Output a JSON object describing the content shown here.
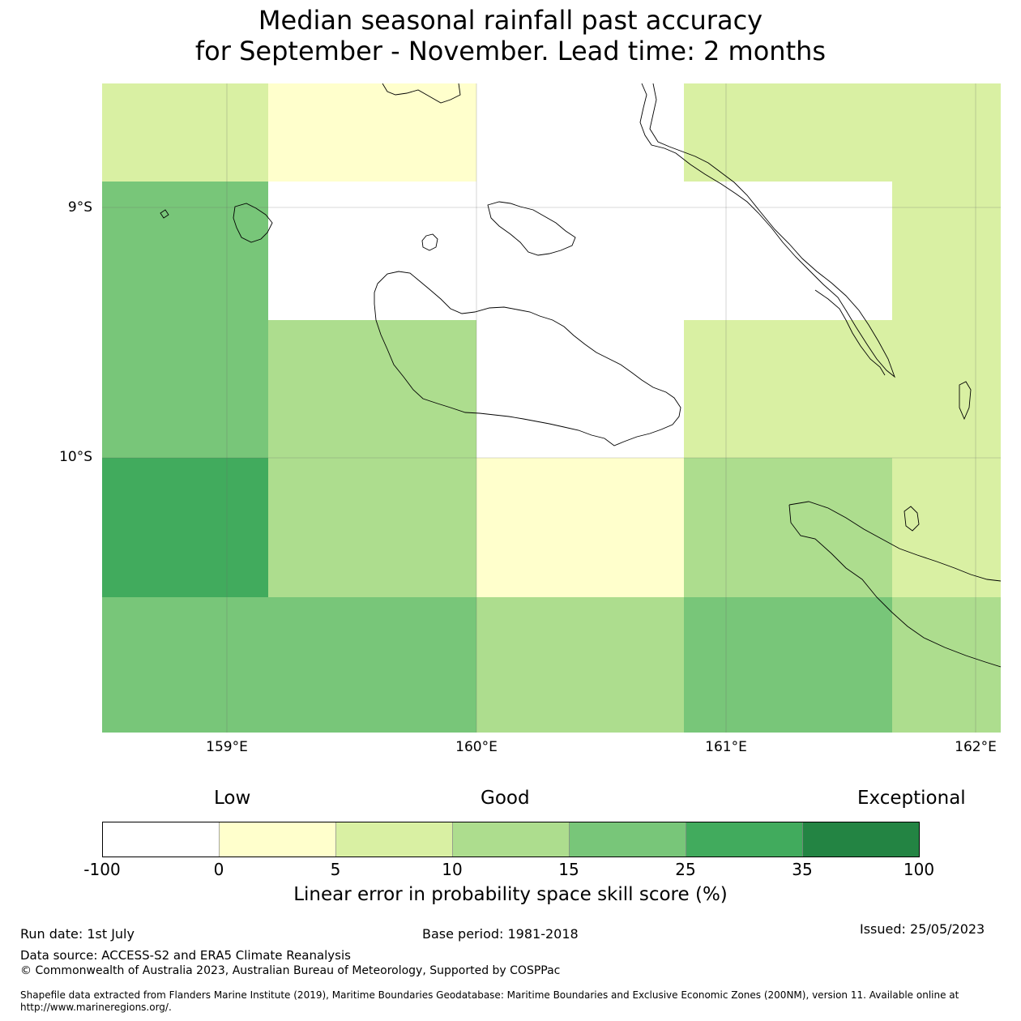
{
  "title": {
    "line1": "Median seasonal rainfall past accuracy",
    "line2": "for September - November. Lead time: 2 months"
  },
  "map": {
    "lat_labels": [
      "9°S",
      "10°S"
    ],
    "lon_labels": [
      "159°E",
      "160°E",
      "161°E",
      "162°E"
    ],
    "legend_categories": [
      "Low",
      "Good",
      "Exceptional"
    ],
    "colorbar_ticks": [
      "-100",
      "0",
      "5",
      "10",
      "15",
      "25",
      "35",
      "100"
    ],
    "colorbar_colors": [
      "#ffffff",
      "#ffffcc",
      "#d9f0a3",
      "#addd8e",
      "#78c679",
      "#41ab5d",
      "#238443"
    ],
    "colorbar_label": "Linear error in probability space skill score (%)",
    "grid_cells": [
      {
        "lon_range": [
          "158.5E",
          "159.17E"
        ],
        "lat_range": [
          "8.6S",
          "8.9S"
        ],
        "skill_class": "5-10"
      },
      {
        "lon_range": [
          "159.17E",
          "160E"
        ],
        "lat_range": [
          "8.6S",
          "8.9S"
        ],
        "skill_class": "0-5"
      },
      {
        "lon_range": [
          "160E",
          "160.83E"
        ],
        "lat_range": [
          "8.6S",
          "9.5S"
        ],
        "skill_class": "-100-0"
      },
      {
        "lon_range": [
          "160.83E",
          "162.1E"
        ],
        "lat_range": [
          "8.6S",
          "8.9S"
        ],
        "skill_class": "5-10"
      },
      {
        "lon_range": [
          "158.5E",
          "159.17E"
        ],
        "lat_range": [
          "8.9S",
          "10S"
        ],
        "skill_class": "15-25"
      },
      {
        "lon_range": [
          "159.17E",
          "160E"
        ],
        "lat_range": [
          "8.9S",
          "9.5S"
        ],
        "skill_class": "-100-0"
      },
      {
        "lon_range": [
          "160.83E",
          "161.67E"
        ],
        "lat_range": [
          "8.9S",
          "9.5S"
        ],
        "skill_class": "-100-0"
      },
      {
        "lon_range": [
          "161.67E",
          "162.1E"
        ],
        "lat_range": [
          "8.9S",
          "10S"
        ],
        "skill_class": "5-10"
      },
      {
        "lon_range": [
          "159.17E",
          "160E"
        ],
        "lat_range": [
          "9.5S",
          "10.56S"
        ],
        "skill_class": "10-15"
      },
      {
        "lon_range": [
          "160E",
          "160.83E"
        ],
        "lat_range": [
          "9.5S",
          "10S"
        ],
        "skill_class": "-100-0"
      },
      {
        "lon_range": [
          "160.83E",
          "161.67E"
        ],
        "lat_range": [
          "9.5S",
          "10S"
        ],
        "skill_class": "5-10"
      },
      {
        "lon_range": [
          "158.5E",
          "159.17E"
        ],
        "lat_range": [
          "10S",
          "10.56S"
        ],
        "skill_class": "25-35"
      },
      {
        "lon_range": [
          "160E",
          "160.83E"
        ],
        "lat_range": [
          "10S",
          "10.56S"
        ],
        "skill_class": "0-5"
      },
      {
        "lon_range": [
          "160.83E",
          "161.67E"
        ],
        "lat_range": [
          "10S",
          "10.56S"
        ],
        "skill_class": "10-15"
      },
      {
        "lon_range": [
          "161.67E",
          "162.1E"
        ],
        "lat_range": [
          "10S",
          "10.56S"
        ],
        "skill_class": "5-10"
      },
      {
        "lon_range": [
          "158.5E",
          "160E"
        ],
        "lat_range": [
          "10.56S",
          "11.1S"
        ],
        "skill_class": "15-25"
      },
      {
        "lon_range": [
          "160E",
          "160.83E"
        ],
        "lat_range": [
          "10.56S",
          "11.1S"
        ],
        "skill_class": "10-15"
      },
      {
        "lon_range": [
          "160.83E",
          "161.67E"
        ],
        "lat_range": [
          "10.56S",
          "11.1S"
        ],
        "skill_class": "15-25"
      },
      {
        "lon_range": [
          "161.67E",
          "162.1E"
        ],
        "lat_range": [
          "10.56S",
          "11.1S"
        ],
        "skill_class": "10-15"
      }
    ]
  },
  "footer": {
    "run_date": "Run date: 1st July",
    "base_period": "Base period: 1981-2018",
    "issued": "Issued: 25/05/2023",
    "data_source": "Data source: ACCESS-S2 and ERA5 Climate Reanalysis",
    "copyright": "© Commonwealth of Australia 2023, Australian Bureau of Meteorology, Supported by COSPPac",
    "shapefile_line1": "Shapefile data extracted from Flanders Marine Institute (2019), Maritime Boundaries Geodatabase: Maritime Boundaries and Exclusive Economic Zones (200NM), version 11. Available online at",
    "shapefile_line2": "http://www.marineregions.org/."
  }
}
